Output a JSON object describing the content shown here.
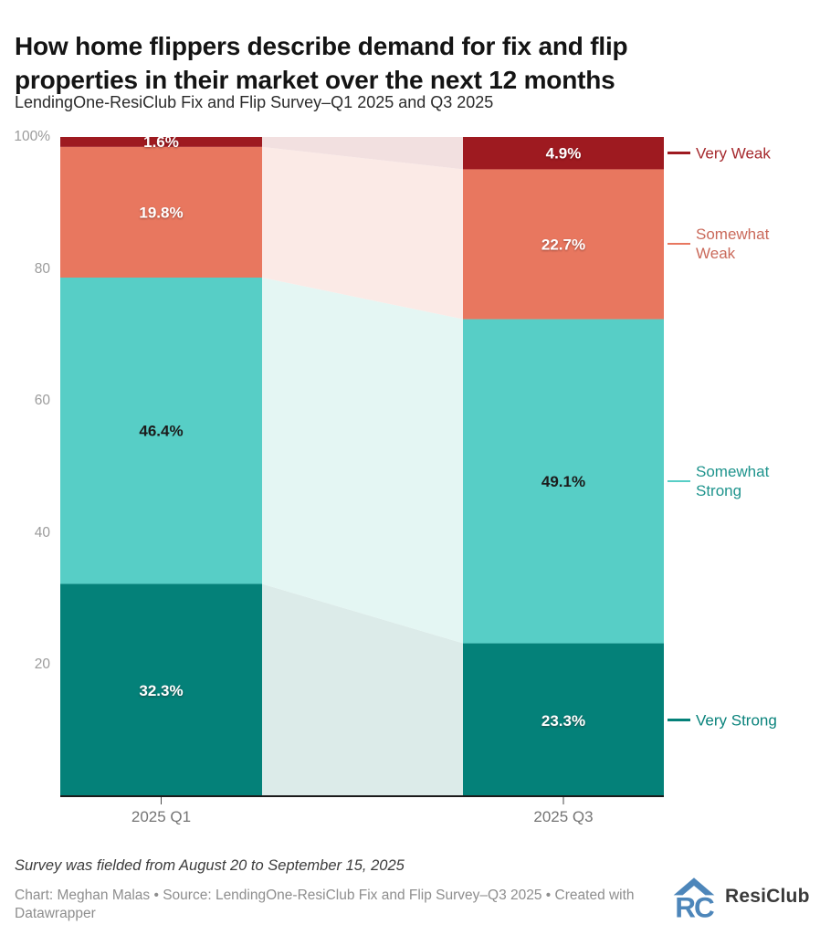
{
  "header": {
    "title_line1": "How home flippers describe demand for fix and flip",
    "title_line2": "properties in their market over the next 12 months",
    "subtitle": "LendingOne-ResiClub Fix and Flip Survey–Q1 2025 and Q3 2025"
  },
  "footer": {
    "note": "Survey was fielded from August 20 to September 15, 2025",
    "byline": "Chart: Meghan Malas • Source: LendingOne-ResiClub Fix and Flip Survey–Q3 2025 • Created with Datawrapper",
    "logo_text": "ResiClub",
    "logo_color": "#4d86ba"
  },
  "chart_data": {
    "type": "bar",
    "variant": "stacked-columns-with-slope-connectors",
    "title": "How home flippers describe demand for fix and flip properties in their market over the next 12 months",
    "categories": [
      "2025 Q1",
      "2025 Q3"
    ],
    "series": [
      {
        "name": "Very Strong",
        "values": [
          32.3,
          23.3
        ],
        "color": "#048179",
        "faded_color": "#dcebe9",
        "label_color": "#0a837c",
        "value_label_style": "light"
      },
      {
        "name": "Somewhat Strong",
        "values": [
          46.4,
          49.1
        ],
        "color": "#57cec6",
        "faded_color": "#e4f6f3",
        "label_color": "#1f948d",
        "value_label_style": "dark"
      },
      {
        "name": "Somewhat Weak",
        "values": [
          19.8,
          22.7
        ],
        "color": "#e8775f",
        "faded_color": "#fbeae6",
        "label_color": "#ca6a5b",
        "value_label_style": "light"
      },
      {
        "name": "Very Weak",
        "values": [
          1.6,
          4.9
        ],
        "color": "#9e1a20",
        "faded_color": "#f2e0e0",
        "label_color": "#a62a2e",
        "value_label_style": "light"
      }
    ],
    "ylim": [
      0,
      100
    ],
    "yticks": [
      20,
      40,
      60,
      80,
      100
    ],
    "ytick_top_label": "100%",
    "grid": true,
    "grid_color": "#d9d9d9",
    "axis_color": "#1a1a1a",
    "tick_label_color": "#9b9b9b",
    "xlabel_color": "#757575",
    "legend_position": "right",
    "value_label_format": "percent_one_decimal"
  }
}
